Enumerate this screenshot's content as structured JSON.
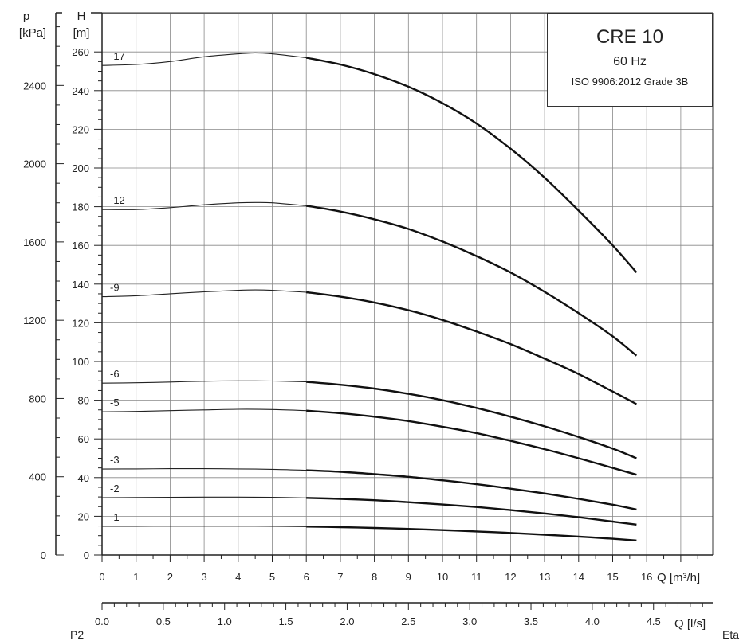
{
  "chart_data": {
    "type": "line",
    "title": "CRE 10",
    "subtitle": "60 Hz",
    "note": "ISO 9906:2012 Grade 3B",
    "left_axis_unit": "p",
    "left_axis_unit2": "[kPa]",
    "head_axis_unit": "H",
    "head_axis_unit2": "[m]",
    "x_axis_label_m3h": "Q [m³/h]",
    "x_axis_label_ls": "Q [l/s]",
    "xlim": [
      0,
      17
    ],
    "ylim": [
      0,
      280
    ],
    "grid": true,
    "pressure_ticks": [
      "0",
      "400",
      "800",
      "1200",
      "1600",
      "2000",
      "2400"
    ],
    "pressure_values": [
      0,
      400,
      800,
      1200,
      1600,
      2000,
      2400
    ],
    "head_ticks": [
      "0",
      "20",
      "40",
      "60",
      "80",
      "100",
      "120",
      "140",
      "160",
      "180",
      "200",
      "220",
      "240",
      "260"
    ],
    "head_values": [
      0,
      20,
      40,
      60,
      80,
      100,
      120,
      140,
      160,
      180,
      200,
      220,
      240,
      260
    ],
    "x_ticks_m3h": [
      "0",
      "1",
      "2",
      "3",
      "4",
      "5",
      "6",
      "7",
      "8",
      "9",
      "10",
      "11",
      "12",
      "13",
      "14",
      "15",
      "16"
    ],
    "x_ticks_ls": [
      "0.0",
      "0.5",
      "1.0",
      "1.5",
      "2.0",
      "2.5",
      "3.0",
      "3.5",
      "4.0",
      "4.5"
    ],
    "x_ticks_ls_values": [
      0.0,
      0.5,
      1.0,
      1.5,
      2.0,
      2.5,
      3.0,
      3.5,
      4.0,
      4.5
    ],
    "series": [
      {
        "name": "-17",
        "x": [
          0,
          1,
          2,
          3,
          4,
          4.5,
          5,
          6,
          7,
          8,
          9,
          10,
          11,
          12,
          13,
          14,
          15,
          15.7
        ],
        "y": [
          253,
          253.5,
          255,
          257.5,
          259,
          259.5,
          259,
          257,
          253.5,
          248.5,
          242,
          233.5,
          223,
          210,
          195,
          178,
          160,
          146
        ]
      },
      {
        "name": "-12",
        "x": [
          0,
          1,
          2,
          3,
          4,
          4.5,
          5,
          6,
          7,
          8,
          9,
          10,
          11,
          12,
          13,
          14,
          15,
          15.7
        ],
        "y": [
          178.5,
          178.5,
          179.5,
          181,
          182,
          182.2,
          182,
          180.5,
          177.5,
          173.5,
          168.5,
          162,
          154.5,
          146,
          136,
          125,
          113,
          103
        ]
      },
      {
        "name": "-9",
        "x": [
          0,
          1,
          2,
          3,
          4,
          4.5,
          5,
          6,
          7,
          8,
          9,
          10,
          11,
          12,
          13,
          14,
          15,
          15.7
        ],
        "y": [
          133.5,
          134,
          135,
          136,
          136.8,
          137,
          136.8,
          135.8,
          133.5,
          130.5,
          126.5,
          121.5,
          115.5,
          109,
          101.5,
          93.5,
          84.5,
          78
        ]
      },
      {
        "name": "-6",
        "x": [
          0,
          1,
          2,
          3,
          4,
          5,
          6,
          7,
          8,
          9,
          10,
          11,
          12,
          13,
          14,
          15,
          15.7
        ],
        "y": [
          88.8,
          89,
          89.4,
          89.8,
          90,
          89.9,
          89.5,
          88,
          86,
          83.3,
          80,
          76,
          71.5,
          66.5,
          61,
          55,
          50
        ]
      },
      {
        "name": "-5",
        "x": [
          0,
          1,
          2,
          3,
          4,
          5,
          6,
          7,
          8,
          9,
          10,
          11,
          12,
          13,
          14,
          15,
          15.7
        ],
        "y": [
          74,
          74.2,
          74.6,
          75,
          75.3,
          75.2,
          74.6,
          73.3,
          71.5,
          69.2,
          66.3,
          63,
          59,
          54.7,
          50,
          45,
          41.5
        ]
      },
      {
        "name": "-3",
        "x": [
          0,
          1,
          2,
          3,
          4,
          5,
          6,
          7,
          8,
          9,
          10,
          11,
          12,
          13,
          14,
          15,
          15.7
        ],
        "y": [
          44.4,
          44.5,
          44.6,
          44.6,
          44.5,
          44.3,
          43.8,
          43,
          41.8,
          40.4,
          38.6,
          36.6,
          34.3,
          31.8,
          29,
          26,
          23.5
        ]
      },
      {
        "name": "-2",
        "x": [
          0,
          1,
          2,
          3,
          4,
          5,
          6,
          7,
          8,
          9,
          10,
          11,
          12,
          13,
          14,
          15,
          15.7
        ],
        "y": [
          29.6,
          29.7,
          29.8,
          29.9,
          29.9,
          29.8,
          29.5,
          29,
          28.3,
          27.3,
          26.1,
          24.8,
          23.2,
          21.5,
          19.5,
          17.3,
          15.7
        ]
      },
      {
        "name": "-1",
        "x": [
          0,
          1,
          2,
          3,
          4,
          5,
          6,
          7,
          8,
          9,
          10,
          11,
          12,
          13,
          14,
          15,
          15.7
        ],
        "y": [
          14.8,
          14.85,
          14.9,
          14.9,
          14.9,
          14.85,
          14.7,
          14.4,
          14,
          13.5,
          12.9,
          12.2,
          11.4,
          10.5,
          9.5,
          8.4,
          7.5
        ]
      }
    ]
  },
  "footer": {
    "left_label": "P2",
    "right_label": "Eta"
  }
}
